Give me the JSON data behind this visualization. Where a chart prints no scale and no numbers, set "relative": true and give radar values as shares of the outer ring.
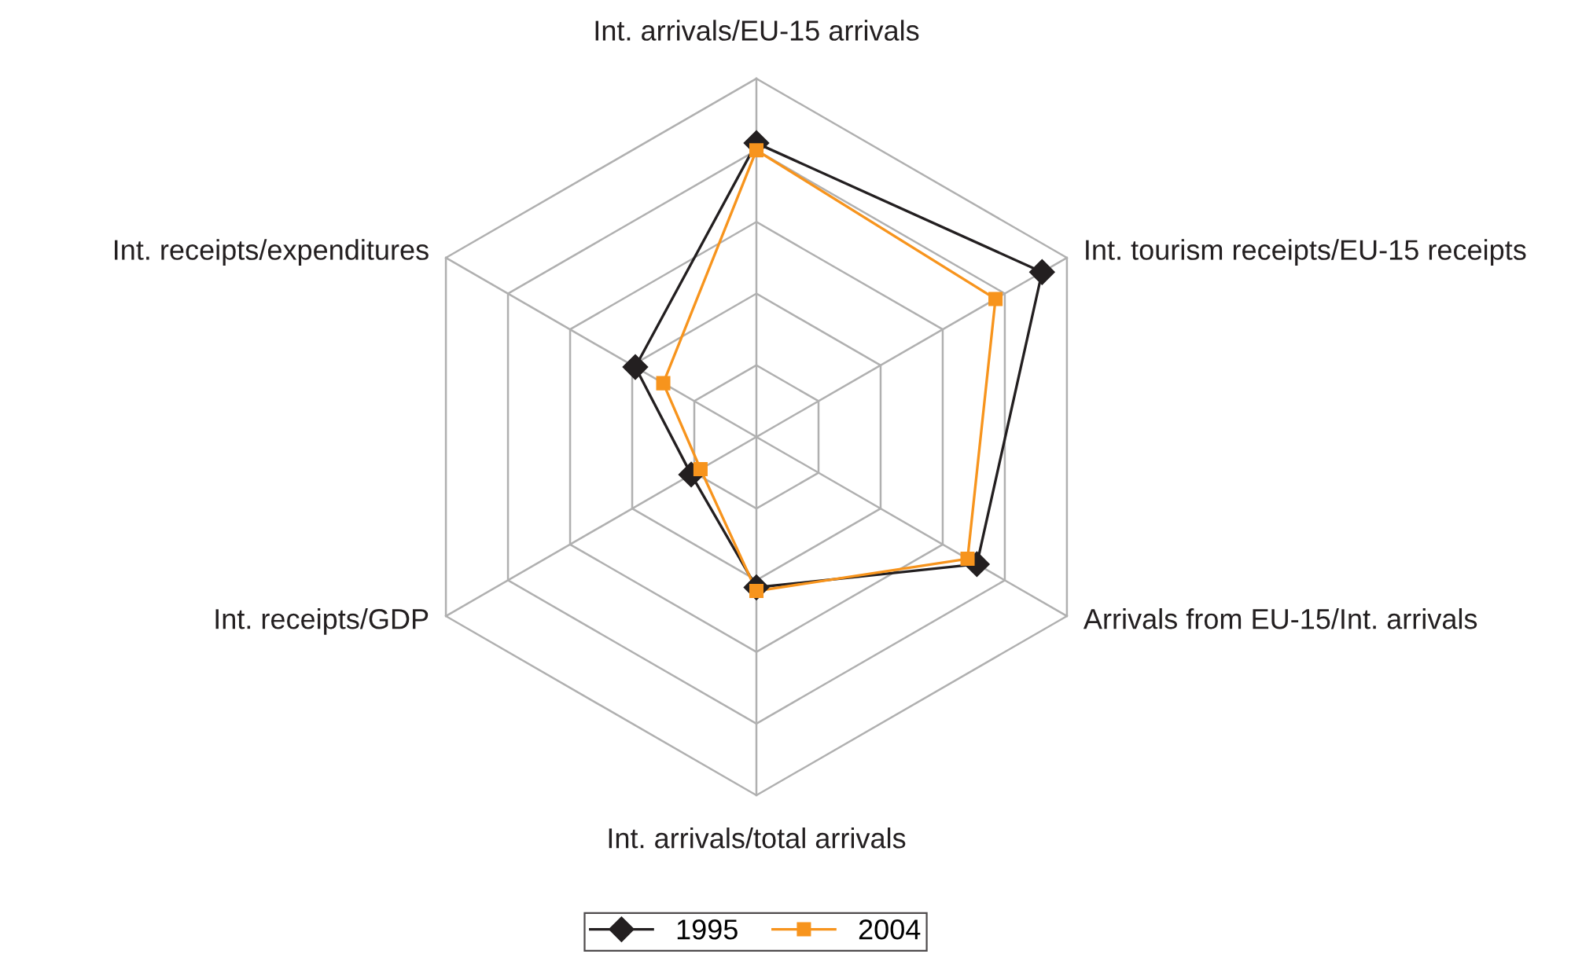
{
  "chart_data": {
    "type": "radar",
    "relative": true,
    "grid": true,
    "legend": "bottom",
    "categories": [
      "Int. arrivals/EU-15 arrivals",
      "Int. tourism receipts/EU-15 receipts",
      "Arrivals from EU-15/Int. arrivals",
      "Int. arrivals/total arrivals",
      "Int. receipts/GDP",
      "Int. receipts/expenditures"
    ],
    "series": [
      {
        "name": "1995",
        "color": "#231f20",
        "marker": "diamond",
        "values": [
          0.82,
          0.92,
          0.71,
          0.42,
          0.21,
          0.39
        ]
      },
      {
        "name": "2004",
        "color": "#f7941d",
        "marker": "square",
        "values": [
          0.8,
          0.77,
          0.68,
          0.43,
          0.18,
          0.3
        ]
      }
    ]
  }
}
